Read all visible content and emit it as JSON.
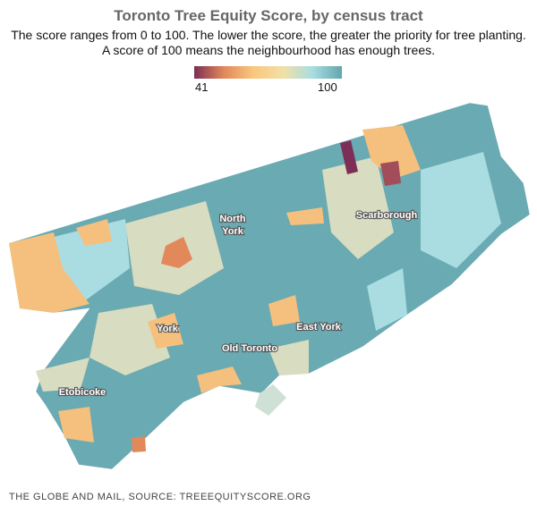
{
  "title": "Toronto Tree Equity Score, by census tract",
  "subtitle_line1": "The score ranges from 0 to 100. The lower the score, the greater the priority for tree planting.",
  "subtitle_line2": "A score of 100 means the neighbourhood has enough trees.",
  "legend": {
    "min": "41",
    "max": "100",
    "colors": [
      "#7d2e56",
      "#e2885a",
      "#f9c77e",
      "#f2e0a6",
      "#a9dde2",
      "#62a6ae"
    ]
  },
  "map": {
    "labels": {
      "north_york": [
        "North",
        "York"
      ],
      "scarborough": "Scarborough",
      "york": "York",
      "east_york": "East York",
      "old_toronto": "Old Toronto",
      "etobicoke": "Etobicoke"
    },
    "colors": {
      "high": "#6aaab2",
      "mid_high": "#a9dde2",
      "neutral": "#d8dcc0",
      "mid_low": "#f5c07e",
      "low": "#e2885a",
      "lowest": "#7d2e56",
      "water": "#cfe0d6"
    }
  },
  "footer": "THE GLOBE AND MAIL, SOURCE: TREEEQUITYSCORE.ORG"
}
